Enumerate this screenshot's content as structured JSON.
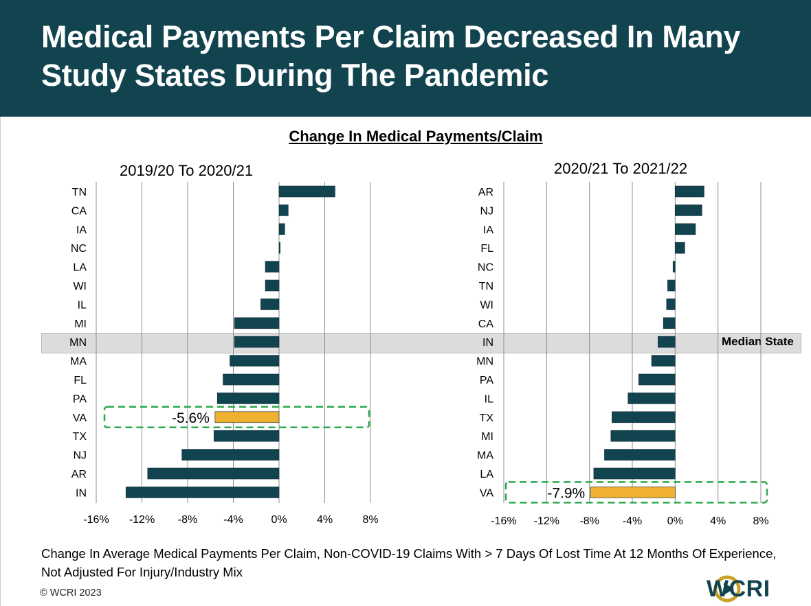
{
  "header": {
    "title": "Medical Payments Per Claim Decreased In Many Study States During The Pandemic"
  },
  "chart_title": "Change In Medical Payments/Claim",
  "median_label": "Median State",
  "footnote": "Change In Average Medical Payments Per Claim, Non-COVID-19 Claims With > 7 Days Of Lost Time At 12 Months Of Experience, Not Adjusted For Injury/Industry Mix",
  "copyright": "© WCRI 2023",
  "logo_text": "WCRI",
  "colors": {
    "header_bg": "#124450",
    "bar": "#124450",
    "highlight": "#f0b030",
    "callout": "#2aa84a",
    "median_band": "#dcdcdc"
  },
  "chart_data": [
    {
      "type": "bar",
      "orientation": "horizontal",
      "title": "2019/20 To 2020/21",
      "categories": [
        "TN",
        "CA",
        "IA",
        "NC",
        "LA",
        "WI",
        "IL",
        "MI",
        "MN",
        "MA",
        "FL",
        "PA",
        "VA",
        "TX",
        "NJ",
        "AR",
        "IN"
      ],
      "values": [
        4.9,
        0.8,
        0.5,
        0.1,
        -1.2,
        -1.2,
        -1.6,
        -3.9,
        -3.9,
        -4.3,
        -4.9,
        -5.4,
        -5.6,
        -5.7,
        -8.5,
        -11.5,
        -13.4
      ],
      "xlim": [
        -16,
        8
      ],
      "ticks": [
        "-16%",
        "-12%",
        "-8%",
        "-4%",
        "0%",
        "4%",
        "8%"
      ],
      "tick_values": [
        -16,
        -12,
        -8,
        -4,
        0,
        4,
        8
      ],
      "highlight": "VA",
      "highlight_label": "-5.6%",
      "median": "MN"
    },
    {
      "type": "bar",
      "orientation": "horizontal",
      "title": "2020/21 To 2021/22",
      "categories": [
        "AR",
        "NJ",
        "IA",
        "FL",
        "NC",
        "TN",
        "WI",
        "CA",
        "IN",
        "MN",
        "PA",
        "IL",
        "TX",
        "MI",
        "MA",
        "LA",
        "VA"
      ],
      "values": [
        2.7,
        2.5,
        1.9,
        0.9,
        -0.2,
        -0.7,
        -0.8,
        -1.1,
        -1.6,
        -2.2,
        -3.4,
        -4.4,
        -5.9,
        -6.0,
        -6.6,
        -7.6,
        -7.9
      ],
      "xlim": [
        -16,
        8
      ],
      "ticks": [
        "-16%",
        "-12%",
        "-8%",
        "-4%",
        "0%",
        "4%",
        "8%"
      ],
      "tick_values": [
        -16,
        -12,
        -8,
        -4,
        0,
        4,
        8
      ],
      "highlight": "VA",
      "highlight_label": "-7.9%",
      "median": "IN"
    }
  ]
}
